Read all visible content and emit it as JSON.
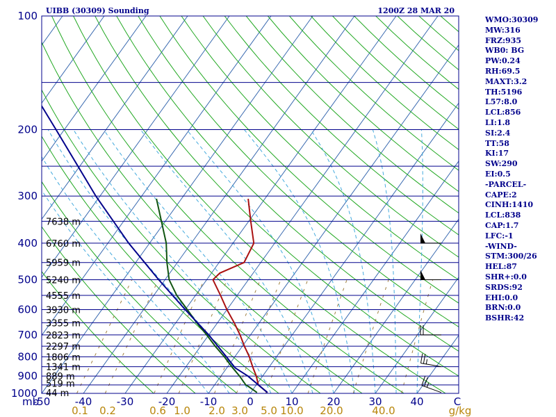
{
  "header": {
    "station": "UIBB (30309) Sounding",
    "valid_time": "1200Z 28 MAR 20"
  },
  "stats": [
    "WMO:30309",
    "MW:316",
    "FRZ:935",
    "WB0: BG",
    "PW:0.24",
    "RH:69.5",
    "MAXT:3.2",
    "TH:5196",
    "L57:8.0",
    "LCL:856",
    "LI:1.8",
    "SI:2.4",
    "TT:58",
    "KI:17",
    "SW:290",
    "EI:0.5",
    "-PARCEL-",
    "CAPE:2",
    "CINH:1410",
    "LCL:838",
    "CAP:1.7",
    "LFC:-1",
    "-WIND-",
    "STM:300/26",
    "HEL:87",
    "SHR+:0.0",
    "SRDS:92",
    "EHI:0.0",
    "BRN:0.0",
    "BSHR:42"
  ],
  "colors": {
    "isobar": "#00008b",
    "isotherm": "#3a6ab0",
    "dry_adiabat": "#22a822",
    "moist_adiabat": "#44aadd",
    "mixing_ratio": "#a08040",
    "temperature": "#aa1111",
    "dewpoint": "#115511",
    "parcel": "#00008b",
    "barb": "#000000"
  },
  "chart_data": {
    "type": "skew-t log-p",
    "title": "UIBB (30309) Sounding",
    "valid_time": "1200Z 28 MAR 20",
    "xlabel": "C",
    "ylabel": "mb",
    "pressure_range_mb": [
      1000,
      100
    ],
    "temp_range_c": [
      -50,
      50
    ],
    "pressure_ticks": [
      100,
      200,
      300,
      400,
      500,
      600,
      700,
      800,
      900,
      1000
    ],
    "isobars_mb": [
      100,
      150,
      200,
      250,
      300,
      350,
      400,
      450,
      500,
      550,
      600,
      650,
      700,
      750,
      800,
      850,
      900,
      950,
      1000
    ],
    "temp_ticks": [
      "-50",
      "-40",
      "-30",
      "-20",
      "-10",
      "0",
      "10",
      "20",
      "30",
      "40"
    ],
    "temp_tick_values": [
      -50,
      -40,
      -30,
      -20,
      -10,
      0,
      10,
      20,
      30,
      40
    ],
    "mixing_ratio_labels": [
      "0.1",
      "0.2",
      "0.6",
      "1.0",
      "2.0",
      "3.0",
      "5.0",
      "10.0",
      "20.0",
      "40.0"
    ],
    "mixing_ratio_values": [
      0.1,
      0.2,
      0.6,
      1.0,
      2.0,
      3.0,
      5.0,
      10.0,
      20.0,
      40.0
    ],
    "mixing_ratio_unit": "g/kg",
    "heights": [
      {
        "label": "7638 m",
        "p": 350
      },
      {
        "label": "6760 m",
        "p": 400
      },
      {
        "label": "5959 m",
        "p": 450
      },
      {
        "label": "5240 m",
        "p": 500
      },
      {
        "label": "4555 m",
        "p": 550
      },
      {
        "label": "3930 m",
        "p": 600
      },
      {
        "label": "3355 m",
        "p": 650
      },
      {
        "label": "2823 m",
        "p": 700
      },
      {
        "label": "2297 m",
        "p": 750
      },
      {
        "label": "1806 m",
        "p": 800
      },
      {
        "label": "1341 m",
        "p": 850
      },
      {
        "label": "889 m",
        "p": 900
      },
      {
        "label": "519 m",
        "p": 940
      },
      {
        "label": "44 m",
        "p": 995
      }
    ],
    "series": [
      {
        "key": "temperature",
        "points": [
          [
            995,
            4.0
          ],
          [
            950,
            0.5
          ],
          [
            900,
            -1.5
          ],
          [
            850,
            -4.0
          ],
          [
            800,
            -6.5
          ],
          [
            750,
            -9.5
          ],
          [
            700,
            -12.5
          ],
          [
            650,
            -16.0
          ],
          [
            600,
            -20.0
          ],
          [
            550,
            -24.0
          ],
          [
            500,
            -28.5
          ],
          [
            480,
            -28.0
          ],
          [
            450,
            -24.0
          ],
          [
            400,
            -25.0
          ],
          [
            350,
            -29.5
          ],
          [
            305,
            -34.0
          ]
        ]
      },
      {
        "key": "dewpoint",
        "points": [
          [
            995,
            1.5
          ],
          [
            960,
            -1.5
          ],
          [
            950,
            -2.5
          ],
          [
            900,
            -5.5
          ],
          [
            850,
            -9.0
          ],
          [
            800,
            -12.5
          ],
          [
            750,
            -16.5
          ],
          [
            700,
            -20.5
          ],
          [
            650,
            -25.0
          ],
          [
            600,
            -29.5
          ],
          [
            550,
            -34.5
          ],
          [
            500,
            -39.0
          ],
          [
            450,
            -42.5
          ],
          [
            400,
            -46.0
          ],
          [
            305,
            -56.0
          ]
        ]
      },
      {
        "key": "parcel",
        "points": [
          [
            995,
            4.0
          ],
          [
            900,
            -3.5
          ],
          [
            856,
            -8.0
          ],
          [
            800,
            -12.0
          ],
          [
            700,
            -20.0
          ],
          [
            600,
            -30.0
          ],
          [
            500,
            -41.5
          ],
          [
            400,
            -55.0
          ],
          [
            300,
            -71.0
          ],
          [
            200,
            -92.0
          ],
          [
            150,
            -107.0
          ],
          [
            110,
            -123.0
          ]
        ]
      }
    ],
    "wind_barbs": [
      {
        "p": 995,
        "dir": 290,
        "kt": 25
      },
      {
        "p": 850,
        "dir": 280,
        "kt": 25
      },
      {
        "p": 700,
        "dir": 270,
        "kt": 20
      },
      {
        "p": 500,
        "dir": 270,
        "kt": 50
      },
      {
        "p": 400,
        "dir": 270,
        "kt": 50
      }
    ]
  }
}
